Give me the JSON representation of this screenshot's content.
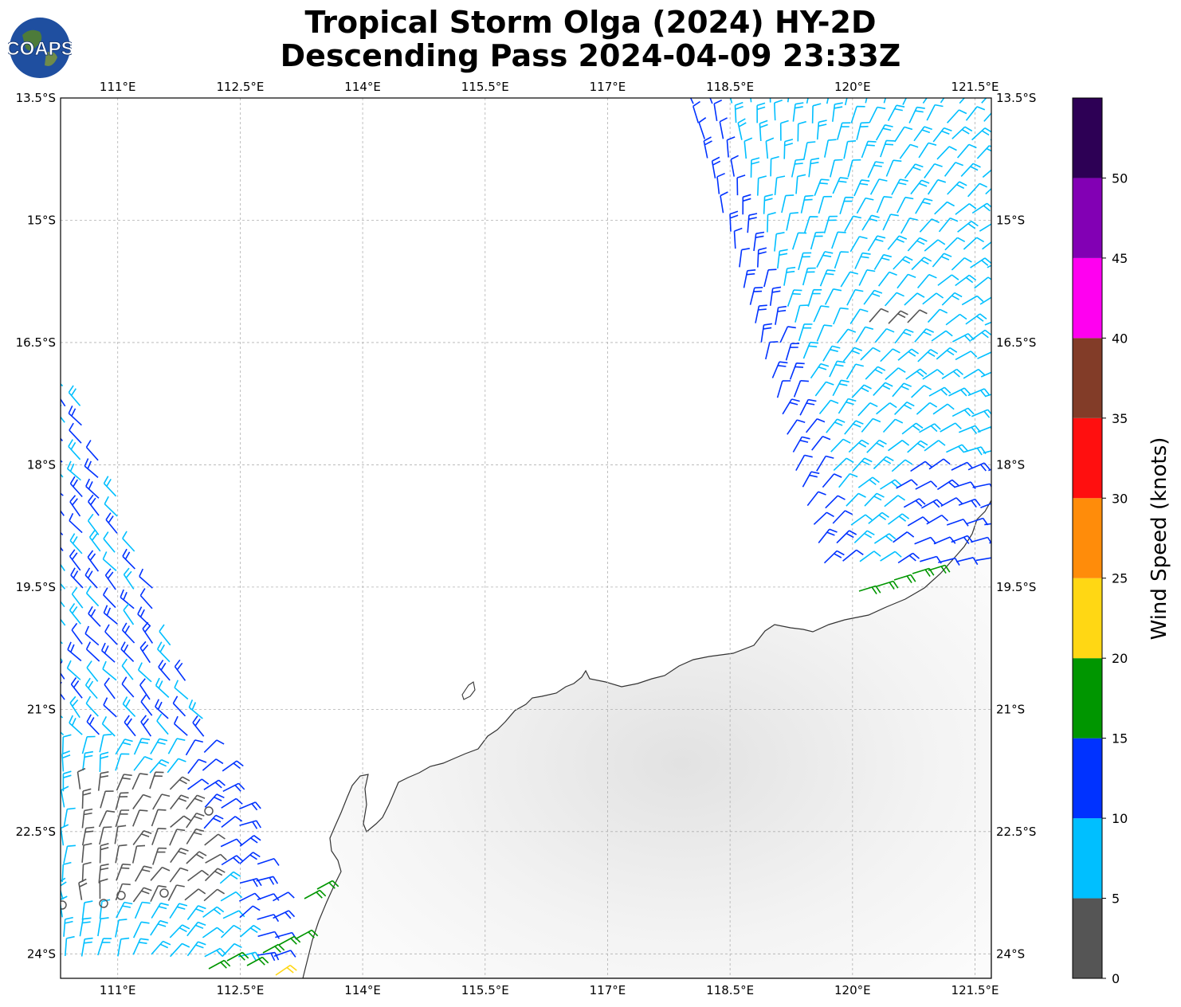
{
  "title": {
    "line1": "Tropical Storm Olga (2024) HY-2D",
    "line2": "Descending Pass 2024-04-09 23:33Z"
  },
  "logo": {
    "text": "COAPS"
  },
  "map": {
    "lon_range": [
      110.3,
      121.7
    ],
    "lat_range": [
      -24.3,
      -13.5
    ],
    "lon_ticks": [
      "111°E",
      "112.5°E",
      "114°E",
      "115.5°E",
      "117°E",
      "118.5°E",
      "120°E",
      "121.5°E"
    ],
    "lat_ticks": [
      "13.5°S",
      "15°S",
      "16.5°S",
      "18°S",
      "19.5°S",
      "21°S",
      "22.5°S",
      "24°S"
    ],
    "gridlines": true
  },
  "colorbar": {
    "label": "Wind Speed (knots)",
    "ticks": [
      "0",
      "5",
      "10",
      "15",
      "20",
      "25",
      "30",
      "35",
      "40",
      "45",
      "50"
    ],
    "colors": [
      "#555555",
      "#00bfff",
      "#0032ff",
      "#009600",
      "#ffd714",
      "#ff8c0a",
      "#ff0f0f",
      "#823c28",
      "#ff00f0",
      "#8200b4",
      "#2d0055"
    ]
  },
  "swaths": {
    "east_color_light": "#00bfff",
    "east_color_dark": "#0032ff",
    "west_color_light": "#00bfff",
    "west_color_dark": "#0032ff",
    "calm_color": "#555555",
    "strong_color": "#009600",
    "max_color": "#ffd714"
  }
}
